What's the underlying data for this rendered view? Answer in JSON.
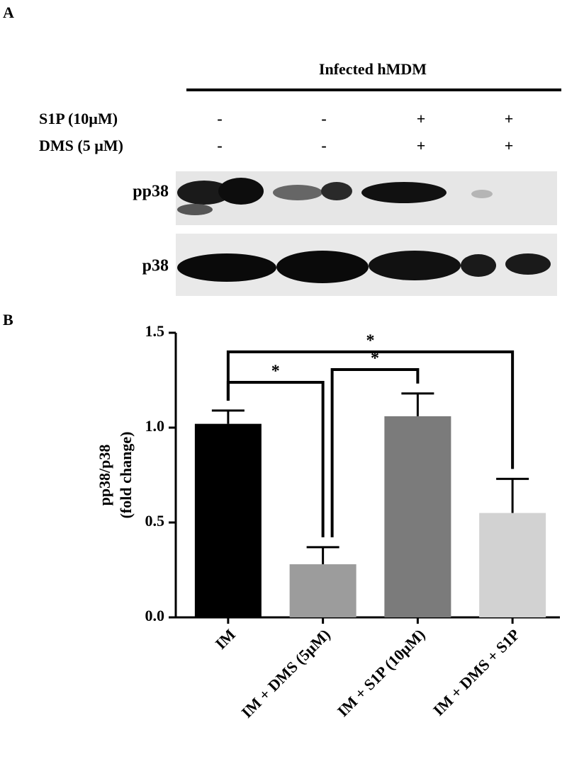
{
  "panel_a": {
    "label": "A",
    "header": "Infected hMDM",
    "rows": [
      {
        "label": "S1P (10µM)",
        "signs": [
          "-",
          "-",
          "+",
          "+"
        ]
      },
      {
        "label": "DMS (5 µM)",
        "signs": [
          "-",
          "-",
          "+",
          "+"
        ]
      }
    ],
    "blots": [
      "pp38",
      "p38"
    ]
  },
  "chart_data": {
    "type": "bar",
    "panel_label": "B",
    "ylabel": [
      "pp38/p38",
      "(fold change)"
    ],
    "categories": [
      "IM",
      "IM + DMS (5µM)",
      "IM + S1P (10µM)",
      "IM + DMS + S1P"
    ],
    "values": [
      1.02,
      0.28,
      1.06,
      0.55
    ],
    "errors": [
      0.07,
      0.09,
      0.12,
      0.18
    ],
    "colors": [
      "#000000",
      "#9c9c9c",
      "#7b7b7b",
      "#d2d2d2"
    ],
    "ylim": [
      0,
      1.5
    ],
    "yticks": [
      {
        "value": 0,
        "label": "0.0"
      },
      {
        "value": 0.5,
        "label": "0.5"
      },
      {
        "value": 1,
        "label": "1.0"
      },
      {
        "value": 1.5,
        "label": "1.5"
      }
    ],
    "annotations": [
      {
        "pair": [
          0,
          1
        ],
        "label": "*"
      },
      {
        "pair": [
          1,
          2
        ],
        "label": "*"
      },
      {
        "pair": [
          0,
          3
        ],
        "label": "*"
      }
    ]
  }
}
